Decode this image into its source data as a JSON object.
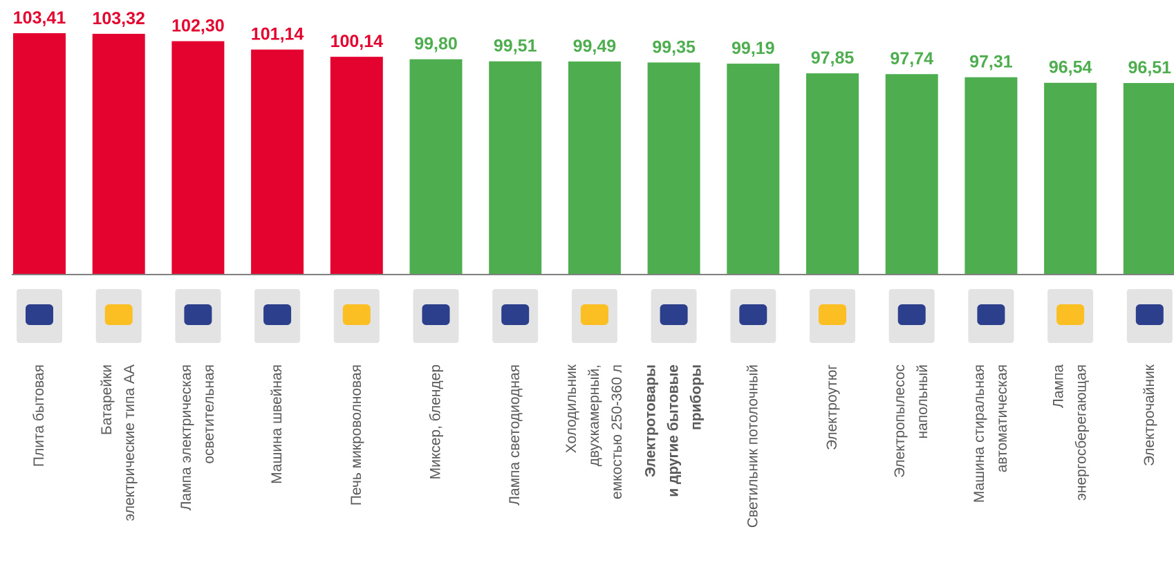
{
  "chart_data": {
    "type": "bar",
    "categories": [
      [
        "Плита бытовая"
      ],
      [
        "Батарейки",
        "электрические типа АА"
      ],
      [
        "Лампа электрическая",
        "осветительная"
      ],
      [
        "Машина швейная"
      ],
      [
        "Печь микроволновая"
      ],
      [
        "Миксер, блендер"
      ],
      [
        "Лампа светодиодная"
      ],
      [
        "Холодильник",
        "двухкамерный,",
        "емкостью 250-360 л"
      ],
      [
        "Электротовары",
        "и другие бытовые",
        "приборы"
      ],
      [
        "Светильник потолочный"
      ],
      [
        "Электроутюг"
      ],
      [
        "Электропылесос",
        "напольный"
      ],
      [
        "Машина стиральная",
        "автоматическая"
      ],
      [
        "Лампа",
        "энергосберегающая"
      ],
      [
        "Электрочайник"
      ]
    ],
    "values": [
      103.41,
      103.32,
      102.3,
      101.14,
      100.14,
      99.8,
      99.51,
      99.49,
      99.35,
      99.19,
      97.85,
      97.74,
      97.31,
      96.54,
      96.51
    ],
    "value_labels": [
      "103,41",
      "103,32",
      "102,30",
      "101,14",
      "100,14",
      "99,80",
      "99,51",
      "99,49",
      "99,35",
      "99,19",
      "97,85",
      "97,74",
      "97,31",
      "96,54",
      "96,51"
    ],
    "colors": [
      "#e4032e",
      "#e4032e",
      "#e4032e",
      "#e4032e",
      "#e4032e",
      "#4eae4f",
      "#4eae4f",
      "#4eae4f",
      "#4eae4f",
      "#4eae4f",
      "#4eae4f",
      "#4eae4f",
      "#4eae4f",
      "#4eae4f",
      "#4eae4f"
    ],
    "ylim": [
      70,
      108
    ]
  }
}
